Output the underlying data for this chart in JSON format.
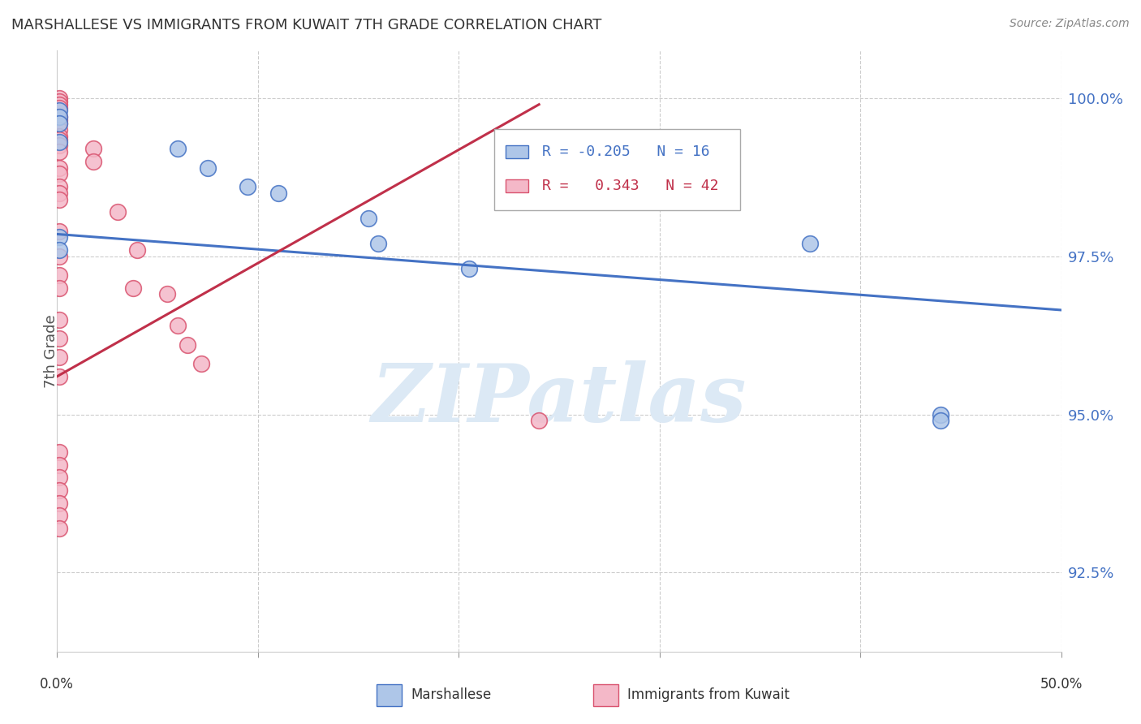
{
  "title": "MARSHALLESE VS IMMIGRANTS FROM KUWAIT 7TH GRADE CORRELATION CHART",
  "source": "Source: ZipAtlas.com",
  "ylabel": "7th Grade",
  "legend_blue_R": "-0.205",
  "legend_blue_N": "16",
  "legend_pink_R": "0.343",
  "legend_pink_N": "42",
  "xmin": 0.0,
  "xmax": 0.5,
  "ymin": 0.9125,
  "ymax": 1.0075,
  "yticks": [
    0.925,
    0.95,
    0.975,
    1.0
  ],
  "ytick_labels": [
    "92.5%",
    "95.0%",
    "97.5%",
    "100.0%"
  ],
  "blue_scatter_x": [
    0.001,
    0.001,
    0.001,
    0.001,
    0.001,
    0.001,
    0.06,
    0.075,
    0.095,
    0.11,
    0.155,
    0.16,
    0.205,
    0.375,
    0.44,
    0.44
  ],
  "blue_scatter_y": [
    0.998,
    0.997,
    0.996,
    0.993,
    0.978,
    0.976,
    0.992,
    0.989,
    0.986,
    0.985,
    0.981,
    0.977,
    0.973,
    0.977,
    0.95,
    0.949
  ],
  "pink_scatter_x": [
    0.001,
    0.001,
    0.001,
    0.001,
    0.001,
    0.001,
    0.001,
    0.001,
    0.001,
    0.001,
    0.001,
    0.001,
    0.001,
    0.001,
    0.001,
    0.001,
    0.001,
    0.001,
    0.001,
    0.018,
    0.018,
    0.03,
    0.04,
    0.038,
    0.055,
    0.06,
    0.065,
    0.072,
    0.24,
    0.001,
    0.001,
    0.001,
    0.001,
    0.001,
    0.001,
    0.001,
    0.001,
    0.001,
    0.001,
    0.001,
    0.001,
    0.001
  ],
  "pink_scatter_y": [
    1.0,
    0.9995,
    0.999,
    0.9985,
    0.997,
    0.9965,
    0.996,
    0.995,
    0.994,
    0.9935,
    0.9925,
    0.9915,
    0.989,
    0.988,
    0.986,
    0.985,
    0.984,
    0.979,
    0.975,
    0.992,
    0.99,
    0.982,
    0.976,
    0.97,
    0.969,
    0.964,
    0.961,
    0.958,
    0.949,
    0.972,
    0.97,
    0.965,
    0.962,
    0.959,
    0.956,
    0.944,
    0.942,
    0.94,
    0.938,
    0.936,
    0.934,
    0.932
  ],
  "blue_line_x": [
    0.0,
    0.5
  ],
  "blue_line_y": [
    0.9785,
    0.9665
  ],
  "pink_line_x": [
    0.0,
    0.24
  ],
  "pink_line_y": [
    0.956,
    0.999
  ],
  "blue_color": "#aec6e8",
  "pink_color": "#f4b8c8",
  "blue_edge_color": "#4472c4",
  "pink_edge_color": "#d9536f",
  "blue_line_color": "#4472c4",
  "pink_line_color": "#c0304a",
  "watermark_color": "#dce9f5",
  "grid_color": "#cccccc",
  "ytick_color": "#4472c4"
}
